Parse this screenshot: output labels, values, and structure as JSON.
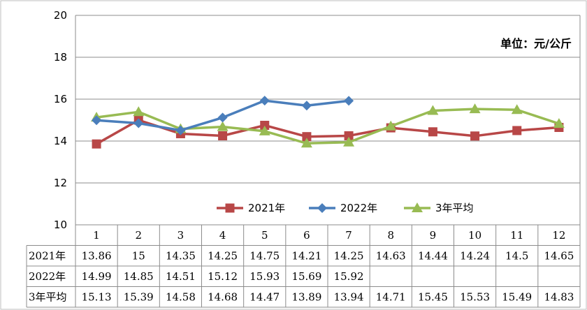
{
  "chart_data": {
    "type": "line",
    "title": "",
    "xlabel": "",
    "ylabel": "",
    "unit_label": "单位：元/公斤",
    "categories": [
      "1",
      "2",
      "3",
      "4",
      "5",
      "6",
      "7",
      "8",
      "9",
      "10",
      "11",
      "12"
    ],
    "ylim": [
      10,
      20
    ],
    "yticks": [
      "10",
      "12",
      "14",
      "16",
      "18",
      "20"
    ],
    "grid": true,
    "legend_position": "bottom-center",
    "series": [
      {
        "name": "2021年",
        "values": [
          13.86,
          15,
          14.35,
          14.25,
          14.75,
          14.21,
          14.25,
          14.63,
          14.44,
          14.24,
          14.5,
          14.65
        ],
        "color": "#b84747",
        "marker": "square"
      },
      {
        "name": "2022年",
        "values": [
          14.99,
          14.85,
          14.51,
          15.12,
          15.93,
          15.69,
          15.92,
          null,
          null,
          null,
          null,
          null
        ],
        "color": "#4a7ebb",
        "marker": "diamond"
      },
      {
        "name": "3年平均",
        "values": [
          15.13,
          15.39,
          14.58,
          14.68,
          14.47,
          13.89,
          13.94,
          14.71,
          15.45,
          15.53,
          15.49,
          14.83
        ],
        "color": "#98bb53",
        "marker": "triangle"
      }
    ],
    "table": {
      "rows": [
        {
          "label": "2021年",
          "cells": [
            "13.86",
            "15",
            "14.35",
            "14.25",
            "14.75",
            "14.21",
            "14.25",
            "14.63",
            "14.44",
            "14.24",
            "14.5",
            "14.65"
          ]
        },
        {
          "label": "2022年",
          "cells": [
            "14.99",
            "14.85",
            "14.51",
            "15.12",
            "15.93",
            "15.69",
            "15.92",
            "",
            "",
            "",
            "",
            ""
          ]
        },
        {
          "label": "3年平均",
          "cells": [
            "15.13",
            "15.39",
            "14.58",
            "14.68",
            "14.47",
            "13.89",
            "13.94",
            "14.71",
            "15.45",
            "15.53",
            "15.49",
            "14.83"
          ]
        }
      ]
    }
  }
}
